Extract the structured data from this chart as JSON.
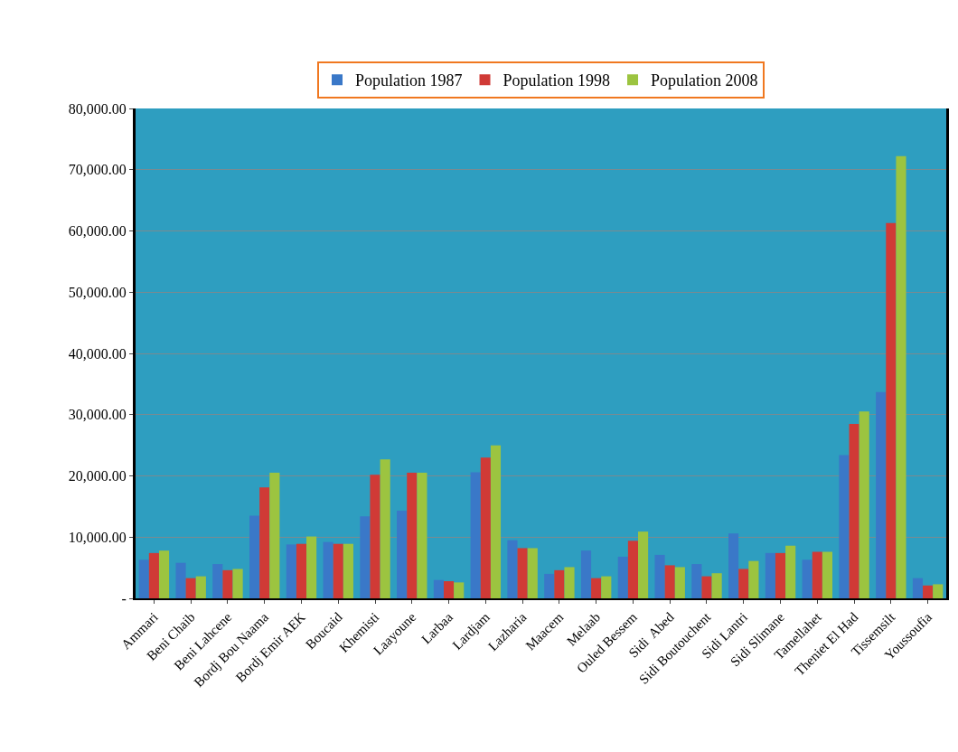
{
  "chart_data": {
    "type": "bar",
    "categories": [
      "Ammari",
      "Beni Chaib",
      "Beni Lahcene",
      "Bordj Bou Naama",
      "Bordj Emir AEK",
      "Boucaid",
      "Khemisti",
      "Laayoune",
      "Larbaa",
      "Lardjam",
      "Lazharia",
      "Maacem",
      "Melaab",
      "Ouled Bessem",
      "Sidi  Abed",
      "Sidi Boutouchent",
      "Sidi Lantri",
      "Sidi Slimane",
      "Tamellahet",
      "Theniet El Had",
      "Tissemsilt",
      "Youssoufia"
    ],
    "series": [
      {
        "name": "Population 1987",
        "color": "#3a78c8",
        "values": [
          6300,
          5800,
          5600,
          13500,
          8800,
          9200,
          13400,
          14300,
          3000,
          20600,
          9500,
          4000,
          7800,
          6800,
          7100,
          5600,
          10600,
          7400,
          6300,
          23400,
          33700,
          3300
        ]
      },
      {
        "name": "Population 1998",
        "color": "#d03a36",
        "values": [
          7400,
          3300,
          4600,
          18100,
          8900,
          8900,
          20200,
          20500,
          2800,
          23000,
          8200,
          4600,
          3300,
          9400,
          5400,
          3600,
          4800,
          7400,
          7600,
          28500,
          61300,
          2100
        ]
      },
      {
        "name": "Population 2008",
        "color": "#9cc440",
        "values": [
          7800,
          3600,
          4800,
          20500,
          10100,
          8900,
          22700,
          20500,
          2600,
          25000,
          8200,
          5100,
          3600,
          10900,
          5100,
          4100,
          6100,
          8600,
          7600,
          30500,
          72200,
          2300
        ]
      }
    ],
    "ylim": [
      0,
      80000
    ],
    "yticks": [
      {
        "value": 0,
        "label": "-"
      },
      {
        "value": 10000,
        "label": "10,000.00"
      },
      {
        "value": 20000,
        "label": "20,000.00"
      },
      {
        "value": 30000,
        "label": "30,000.00"
      },
      {
        "value": 40000,
        "label": "40,000.00"
      },
      {
        "value": 50000,
        "label": "50,000.00"
      },
      {
        "value": 60000,
        "label": "60,000.00"
      },
      {
        "value": 70000,
        "label": "70,000.00"
      },
      {
        "value": 80000,
        "label": "80,000.00"
      }
    ],
    "grid": "y",
    "legend": "top"
  }
}
